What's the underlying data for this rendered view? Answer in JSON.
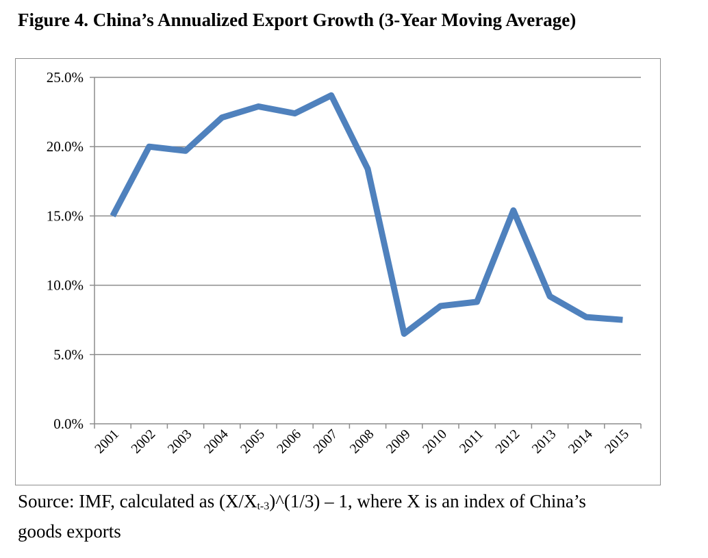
{
  "title": "Figure 4.  China’s Annualized Export Growth (3-Year Moving Average)",
  "source": {
    "pre": "Source: IMF, calculated as (X/X",
    "sub": "t-3",
    "post": ")^(1/3) – 1, where X is an index of China’s goods exports"
  },
  "chart_data": {
    "type": "line",
    "title": "Figure 4.  China’s Annualized Export Growth (3-Year Moving Average)",
    "xlabel": "",
    "ylabel": "",
    "categories": [
      "2001",
      "2002",
      "2003",
      "2004",
      "2005",
      "2006",
      "2007",
      "2008",
      "2009",
      "2010",
      "2011",
      "2012",
      "2013",
      "2014",
      "2015"
    ],
    "series": [
      {
        "values": [
          15.0,
          20.0,
          19.7,
          22.1,
          22.9,
          22.4,
          23.7,
          18.4,
          6.5,
          8.5,
          8.8,
          15.4,
          9.2,
          7.7,
          7.5
        ]
      }
    ],
    "ylim": [
      0,
      25
    ],
    "yticks": [
      0,
      5,
      10,
      15,
      20,
      25
    ],
    "ytick_labels": [
      "0.0%",
      "5.0%",
      "10.0%",
      "15.0%",
      "20.0%",
      "25.0%"
    ],
    "grid": true,
    "legend": "none",
    "line_color": "#4f81bd"
  }
}
